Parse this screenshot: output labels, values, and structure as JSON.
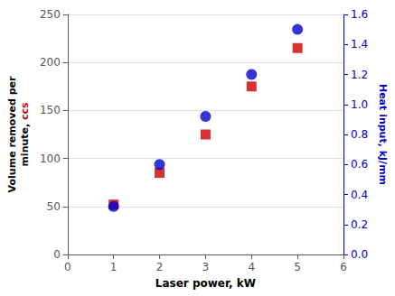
{
  "chart_data": {
    "type": "scatter",
    "xlabel": "Laser power, kW",
    "ylabel": "Volume removed per\nminute, ccs",
    "y2label": "Heat input, kJ/mm",
    "x": [
      1,
      2,
      3,
      4,
      5
    ],
    "series": [
      {
        "type": "scatter",
        "marker": "square",
        "color": "#cc0000",
        "axis": "y",
        "values": [
          52,
          85,
          125,
          175,
          215
        ]
      },
      {
        "type": "scatter",
        "marker": "circle",
        "color": "#0000cc",
        "axis": "y2",
        "values": [
          0.32,
          0.6,
          0.92,
          1.2,
          1.5
        ]
      }
    ],
    "xlim": [
      0,
      6
    ],
    "xticks": [
      0,
      1,
      2,
      3,
      4,
      5,
      6
    ],
    "ylim": [
      0,
      250
    ],
    "yticks": [
      0,
      50,
      100,
      150,
      200,
      250
    ],
    "y2lim": [
      0,
      1.6
    ],
    "y2ticks": [
      {
        "value": 0,
        "label": "0.0"
      },
      0.2,
      0.4,
      0.6,
      0.8,
      {
        "value": 1,
        "label": "1.0"
      },
      1.2,
      1.4,
      1.6
    ],
    "grid": true
  }
}
